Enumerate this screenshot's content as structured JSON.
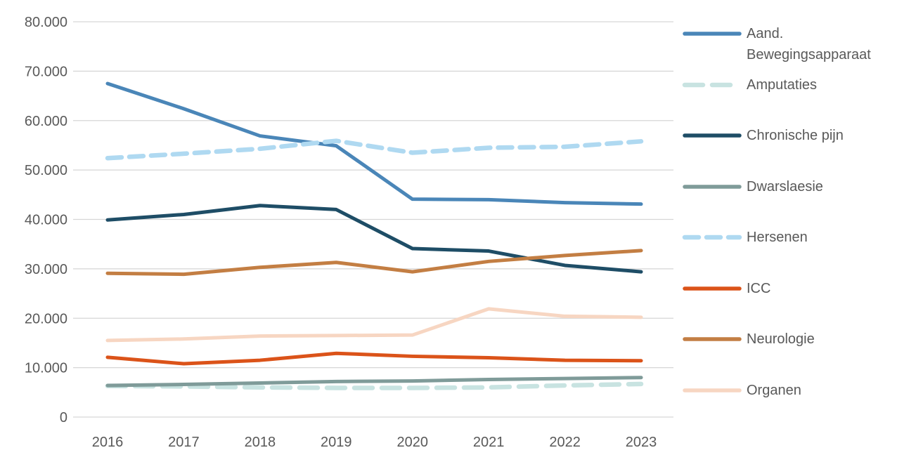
{
  "chart_data": {
    "type": "line",
    "title": "",
    "xlabel": "",
    "ylabel": "",
    "categories": [
      "2016",
      "2017",
      "2018",
      "2019",
      "2020",
      "2021",
      "2022",
      "2023"
    ],
    "series": [
      {
        "name": "Aand. Bewegingsapparaat",
        "color": "#4A86B8",
        "line_style": "solid",
        "dash": null,
        "values": [
          67500,
          62400,
          56900,
          54900,
          44100,
          44000,
          43400,
          43100
        ]
      },
      {
        "name": "Amputaties",
        "color": "#C8E3E1",
        "line_style": "dashed",
        "dash": "26 13",
        "values": [
          6300,
          6200,
          6000,
          5900,
          5900,
          6000,
          6400,
          6700
        ]
      },
      {
        "name": "Chronische pijn",
        "color": "#1E4D66",
        "line_style": "solid",
        "dash": null,
        "values": [
          39900,
          41000,
          42800,
          42000,
          34100,
          33600,
          30700,
          29400
        ]
      },
      {
        "name": "Dwarslaesie",
        "color": "#7F9B99",
        "line_style": "solid",
        "dash": null,
        "values": [
          6400,
          6600,
          6900,
          7200,
          7300,
          7600,
          7800,
          8000
        ]
      },
      {
        "name": "Hersenen",
        "color": "#AFD9F1",
        "line_style": "dashed",
        "dash": "20 11",
        "values": [
          52400,
          53300,
          54300,
          55900,
          53500,
          54500,
          54700,
          55800
        ]
      },
      {
        "name": "ICC",
        "color": "#DB5319",
        "line_style": "solid",
        "dash": null,
        "values": [
          12100,
          10800,
          11500,
          12900,
          12300,
          12000,
          11500,
          11400
        ]
      },
      {
        "name": "Neurologie",
        "color": "#C37E43",
        "line_style": "solid",
        "dash": null,
        "values": [
          29100,
          28900,
          30300,
          31300,
          29400,
          31500,
          32700,
          33700
        ]
      },
      {
        "name": "Organen",
        "color": "#F7D6C2",
        "line_style": "solid",
        "dash": null,
        "values": [
          15500,
          15800,
          16400,
          16500,
          16600,
          21900,
          20400,
          20200
        ]
      }
    ],
    "ylim": [
      0,
      80000
    ],
    "ytick_values": [
      0,
      10000,
      20000,
      30000,
      40000,
      50000,
      60000,
      70000,
      80000
    ],
    "ytick_labels": [
      "0",
      "10.000",
      "20.000",
      "30.000",
      "40.000",
      "50.000",
      "60.000",
      "70.000",
      "80.000"
    ],
    "grid": true,
    "legend_position": "right"
  },
  "style": {
    "background": "#FFFFFF",
    "grid_color": "#D6D6D6",
    "axis_text_color": "#595959"
  }
}
